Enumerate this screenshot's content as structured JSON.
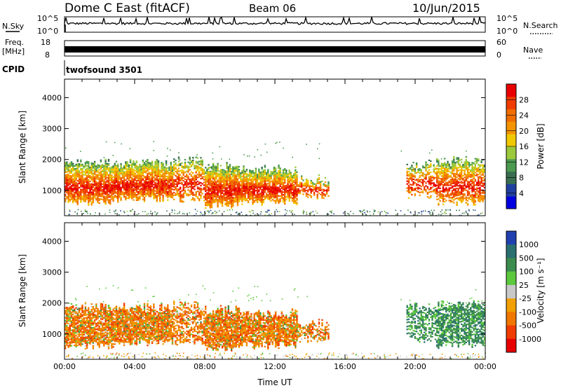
{
  "header": {
    "title": "Dome C East (fitACF)",
    "beam": "Beam 06",
    "date": "10/Jun/2015"
  },
  "strips": {
    "nsky_label": "N.Sky",
    "nsky_top": "10^5",
    "nsky_bottom": "10^0",
    "nsearch_label": "N.Search",
    "nsearch_top": "10^5",
    "nsearch_bottom": "10^0",
    "freq_label": "Freq.",
    "freq_unit": "[MHz]",
    "freq_top": "18",
    "freq_bottom": "8",
    "nave_label": "Nave",
    "nave_top": "60",
    "nave_bottom": "0",
    "cpid_label": "CPID",
    "cpid_text": "twofsound 3501"
  },
  "colors": {
    "power": [
      "#0000e0",
      "#2040a0",
      "#3a6e50",
      "#4c9a50",
      "#9cc83c",
      "#f0c800",
      "#f59400",
      "#f06e00",
      "#f03c00",
      "#e80000"
    ],
    "velocity": [
      "#2040b0",
      "#2a7070",
      "#3c8c50",
      "#5cc83c",
      "#c8c8c8",
      "#f0a000",
      "#f07800",
      "#f03c00",
      "#e80000"
    ]
  },
  "chart_data": [
    {
      "type": "heatmap",
      "panel": "power",
      "ylabel": "Slant Range [km]",
      "xlabel": "",
      "ylim": [
        180,
        4600
      ],
      "yticks": [
        "1000",
        "2000",
        "3000",
        "4000"
      ],
      "xlim": [
        "00:00",
        "24:00"
      ],
      "colorbar": {
        "label": "Power [dB]",
        "ticks": [
          "4",
          "8",
          "12",
          "16",
          "20",
          "24",
          "28"
        ],
        "range": [
          0,
          32
        ]
      },
      "grid": false
    },
    {
      "type": "heatmap",
      "panel": "velocity",
      "ylabel": "Slant Range [km]",
      "xlabel": "Time UT",
      "ylim": [
        180,
        4600
      ],
      "yticks": [
        "1000",
        "2000",
        "3000",
        "4000"
      ],
      "xticks": [
        "00:00",
        "04:00",
        "08:00",
        "12:00",
        "16:00",
        "20:00",
        "00:00"
      ],
      "colorbar": {
        "label": "Velocity [m s⁻¹]",
        "ticks": [
          "1000",
          "500",
          "100",
          "25",
          "-25",
          "-100",
          "-500",
          "-1000"
        ]
      },
      "grid": false
    }
  ]
}
